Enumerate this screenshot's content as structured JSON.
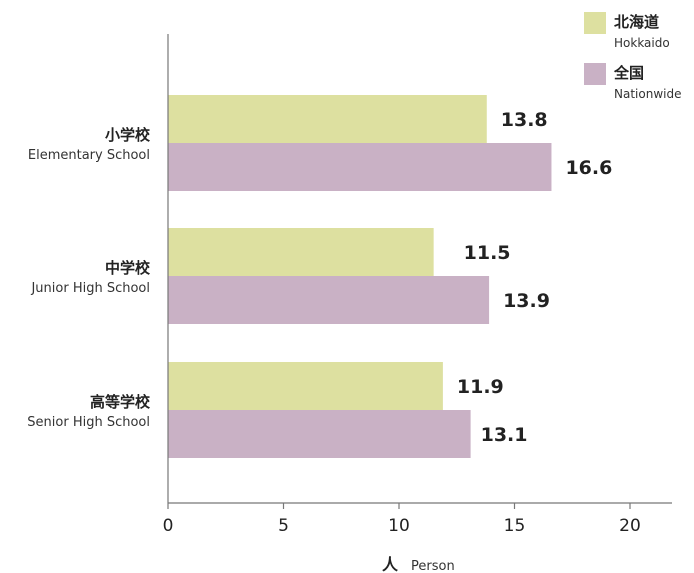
{
  "chart_data": {
    "type": "bar",
    "orientation": "horizontal",
    "categories": [
      {
        "jp": "小学校",
        "en": "Elementary School"
      },
      {
        "jp": "中学校",
        "en": "Junior High School"
      },
      {
        "jp": "高等学校",
        "en": "Senior High School"
      }
    ],
    "series": [
      {
        "name_jp": "北海道",
        "name_en": "Hokkaido",
        "color": "#dde0a0",
        "values": [
          13.8,
          11.5,
          11.9
        ]
      },
      {
        "name_jp": "全国",
        "name_en": "Nationwide",
        "color": "#c9b1c5",
        "values": [
          16.6,
          13.9,
          13.1
        ]
      }
    ],
    "xlim": [
      0,
      22
    ],
    "xticks": [
      0,
      5,
      10,
      15,
      20
    ],
    "xlabel_jp": "人",
    "xlabel_en": "Person",
    "legend": "top-right",
    "grid": false
  }
}
